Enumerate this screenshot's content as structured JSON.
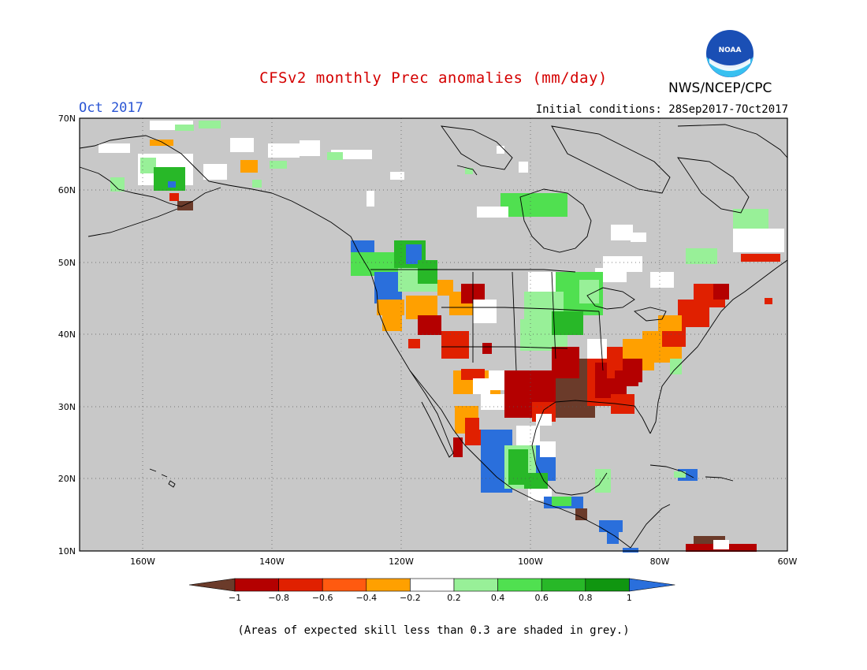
{
  "title": "CFSv2 monthly Prec anomalies (mm/day)",
  "month_label": "Oct 2017",
  "initial_conditions": "Initial conditions: 28Sep2017-7Oct2017",
  "agency": "NWS/NCEP/CPC",
  "logo_text": "NOAA",
  "footnote": "(Areas of expected skill less than 0.3 are shaded in grey.)",
  "axes": {
    "lat_labels": [
      "70N",
      "60N",
      "50N",
      "40N",
      "30N",
      "20N",
      "10N"
    ],
    "lon_labels": [
      "160W",
      "140W",
      "120W",
      "100W",
      "80W",
      "60W"
    ]
  },
  "colorbar": {
    "labels": [
      "−1",
      "−0.8",
      "−0.6",
      "−0.4",
      "−0.2",
      "0.2",
      "0.4",
      "0.6",
      "0.8",
      "1"
    ],
    "colors": [
      "#6b3b2a",
      "#b40000",
      "#e02000",
      "#ff5a10",
      "#ffa000",
      "#ffffff",
      "#98f098",
      "#50e050",
      "#28b828",
      "#109610",
      "#2a6fdc"
    ]
  },
  "colors": {
    "ocean_grey": "#c8c8c8",
    "title_red": "#d40000",
    "month_blue": "#2a55d4"
  }
}
